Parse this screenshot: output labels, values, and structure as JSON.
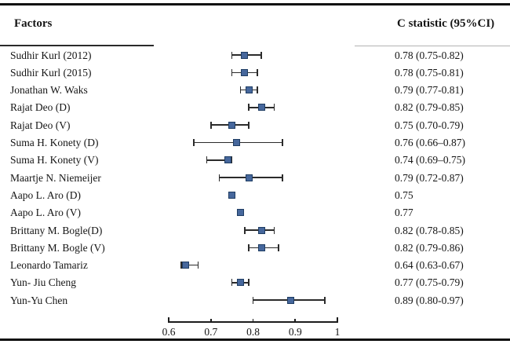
{
  "header": {
    "factors_label": "Factors",
    "cstat_label": "C statistic (95%CI)"
  },
  "studies": [
    {
      "label": "Sudhir Kurl (2012)",
      "value_display": "0.78 (0.75-0.82)",
      "c": 0.78,
      "ci_low": 0.75,
      "ci_high": 0.82
    },
    {
      "label": "Sudhir Kurl (2015)",
      "value_display": "0.78 (0.75-0.81)",
      "c": 0.78,
      "ci_low": 0.75,
      "ci_high": 0.81
    },
    {
      "label": "Jonathan W. Waks",
      "value_display": "0.79 (0.77-0.81)",
      "c": 0.79,
      "ci_low": 0.77,
      "ci_high": 0.81
    },
    {
      "label": "Rajat Deo (D)",
      "value_display": "0.82 (0.79-0.85)",
      "c": 0.82,
      "ci_low": 0.79,
      "ci_high": 0.85
    },
    {
      "label": "Rajat Deo (V)",
      "value_display": "0.75 (0.70-0.79)",
      "c": 0.75,
      "ci_low": 0.7,
      "ci_high": 0.79
    },
    {
      "label": "Suma H. Konety (D)",
      "value_display": "0.76 (0.66–0.87)",
      "c": 0.76,
      "ci_low": 0.66,
      "ci_high": 0.87
    },
    {
      "label": "Suma H. Konety (V)",
      "value_display": "0.74 (0.69–0.75)",
      "c": 0.74,
      "ci_low": 0.69,
      "ci_high": 0.75
    },
    {
      "label": "Maartje N. Niemeijer",
      "value_display": "0.79 (0.72-0.87)",
      "c": 0.79,
      "ci_low": 0.72,
      "ci_high": 0.87
    },
    {
      "label": "Aapo L. Aro (D)",
      "value_display": "0.75",
      "c": 0.75,
      "ci_low": null,
      "ci_high": null
    },
    {
      "label": "Aapo L. Aro (V)",
      "value_display": "0.77",
      "c": 0.77,
      "ci_low": null,
      "ci_high": null
    },
    {
      "label": "Brittany M. Bogle(D)",
      "value_display": "0.82 (0.78-0.85)",
      "c": 0.82,
      "ci_low": 0.78,
      "ci_high": 0.85
    },
    {
      "label": "Brittany M. Bogle (V)",
      "value_display": "0.82 (0.79-0.86)",
      "c": 0.82,
      "ci_low": 0.79,
      "ci_high": 0.86
    },
    {
      "label": "Leonardo Tamariz",
      "value_display": "0.64 (0.63-0.67)",
      "c": 0.64,
      "ci_low": 0.63,
      "ci_high": 0.67
    },
    {
      "label": "Yun- Jiu Cheng",
      "value_display": "0.77 (0.75-0.79)",
      "c": 0.77,
      "ci_low": 0.75,
      "ci_high": 0.79
    },
    {
      "label": "Yun-Yu Chen",
      "value_display": "0.89 (0.80-0.97)",
      "c": 0.89,
      "ci_low": 0.8,
      "ci_high": 0.97
    }
  ],
  "axis": {
    "min": 0.6,
    "max": 1.0,
    "ticks": [
      {
        "label": "0.6",
        "value": 0.6
      },
      {
        "label": "0.7",
        "value": 0.7
      },
      {
        "label": "0.8",
        "value": 0.8
      },
      {
        "label": "0.9",
        "value": 0.9
      },
      {
        "label": "1",
        "value": 1.0
      }
    ]
  },
  "colors": {
    "marker_fill": "#46679c",
    "marker_border": "#1f3d63",
    "whisker": "#2b2b2b",
    "rule_dark": "#1c1c1c",
    "rule_gray": "#b3b3b3",
    "text": "#151515"
  },
  "chart_data": {
    "type": "scatter",
    "subtype": "forest-plot",
    "title": "",
    "xlabel": "",
    "ylabel": "",
    "xlim": [
      0.6,
      1.0
    ],
    "xticks": [
      "0.6",
      "0.7",
      "0.8",
      "0.9",
      "1"
    ],
    "grid": false,
    "legend": "none",
    "column_headers": [
      "Factors",
      "C statistic (95%CI)"
    ],
    "categories": [
      "Sudhir Kurl (2012)",
      "Sudhir Kurl (2015)",
      "Jonathan W. Waks",
      "Rajat Deo (D)",
      "Rajat Deo (V)",
      "Suma H. Konety (D)",
      "Suma H. Konety (V)",
      "Maartje N. Niemeijer",
      "Aapo L. Aro (D)",
      "Aapo L. Aro (V)",
      "Brittany M. Bogle(D)",
      "Brittany M. Bogle (V)",
      "Leonardo Tamariz",
      "Yun- Jiu Cheng",
      "Yun-Yu Chen"
    ],
    "series": [
      {
        "name": "C statistic",
        "values": [
          0.78,
          0.78,
          0.79,
          0.82,
          0.75,
          0.76,
          0.74,
          0.79,
          0.75,
          0.77,
          0.82,
          0.82,
          0.64,
          0.77,
          0.89
        ]
      },
      {
        "name": "CI lower",
        "values": [
          0.75,
          0.75,
          0.77,
          0.79,
          0.7,
          0.66,
          0.69,
          0.72,
          null,
          null,
          0.78,
          0.79,
          0.63,
          0.75,
          0.8
        ]
      },
      {
        "name": "CI upper",
        "values": [
          0.82,
          0.81,
          0.81,
          0.85,
          0.79,
          0.87,
          0.75,
          0.87,
          null,
          null,
          0.85,
          0.86,
          0.67,
          0.79,
          0.97
        ]
      }
    ]
  }
}
